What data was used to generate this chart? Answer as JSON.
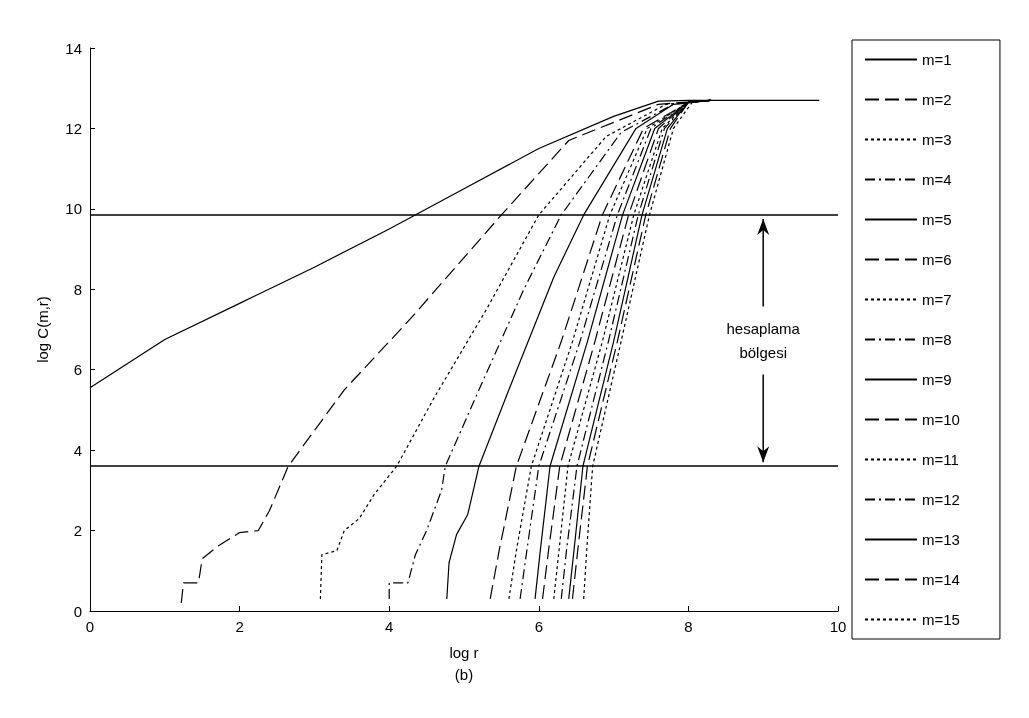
{
  "chart_data": {
    "type": "line",
    "xlabel": "log r",
    "ylabel": "log C(m,r)",
    "xlim": [
      0,
      10
    ],
    "ylim": [
      0,
      14
    ],
    "xticks": [
      0,
      2,
      4,
      6,
      8,
      10
    ],
    "yticks": [
      0,
      2,
      4,
      6,
      8,
      10,
      12,
      14
    ],
    "grid": false,
    "legend": "right",
    "marker": "none",
    "annotations": [
      {
        "text": "hesaplama bölgesi",
        "x": 9,
        "y": 9.85
      },
      "(b)"
    ],
    "ref_lines": [
      {
        "axis": "y",
        "value": 9.85,
        "color": "#000000"
      },
      {
        "axis": "y",
        "value": 3.6,
        "color": "#000000"
      }
    ],
    "series": [
      {
        "name": "m=1",
        "color": "#000000",
        "line_style": "solid",
        "x": [
          0,
          1,
          2,
          3,
          4,
          5,
          6,
          7,
          7.6,
          8,
          9.75
        ],
        "values": [
          5.55,
          6.75,
          7.65,
          8.55,
          9.5,
          10.5,
          11.5,
          12.3,
          12.68,
          12.7,
          12.7
        ]
      },
      {
        "name": "m=2",
        "color": "#000000",
        "line_style": "dashed",
        "x": [
          1.22,
          1.25,
          1.45,
          1.5,
          1.7,
          2,
          2.25,
          2.4,
          2.65,
          3.4,
          4.3,
          5.5,
          6.4,
          7.6,
          8.3
        ],
        "values": [
          0.2,
          0.7,
          0.7,
          1.3,
          1.6,
          1.95,
          2,
          2.5,
          3.6,
          5.5,
          7.3,
          9.85,
          11.7,
          12.6,
          12.7
        ]
      },
      {
        "name": "m=3",
        "color": "#000000",
        "line_style": "dotted",
        "x": [
          3.08,
          3.1,
          3.3,
          3.4,
          3.6,
          3.8,
          4.1,
          4.6,
          5.3,
          6,
          6.9,
          7.7,
          8.3
        ],
        "values": [
          0.3,
          1.4,
          1.5,
          2,
          2.3,
          2.9,
          3.6,
          5.3,
          7.5,
          9.85,
          11.8,
          12.6,
          12.7
        ]
      },
      {
        "name": "m=4",
        "color": "#000000",
        "line_style": "dashdot",
        "x": [
          4,
          4,
          4.25,
          4.35,
          4.5,
          4.7,
          4.75,
          5.2,
          5.8,
          6.3,
          7.1,
          7.8,
          8.3
        ],
        "values": [
          0.3,
          0.7,
          0.7,
          1.4,
          2,
          3,
          3.6,
          5.5,
          8,
          9.85,
          11.9,
          12.6,
          12.7
        ]
      },
      {
        "name": "m=5",
        "color": "#000000",
        "line_style": "solid",
        "x": [
          4.77,
          4.8,
          4.9,
          5.05,
          5.2,
          5.6,
          6.2,
          6.6,
          7.3,
          7.8,
          8.3
        ],
        "values": [
          0.3,
          1.2,
          1.9,
          2.4,
          3.6,
          5.5,
          8.3,
          9.85,
          12,
          12.6,
          12.7
        ]
      },
      {
        "name": "m=6",
        "color": "#000000",
        "line_style": "dashed",
        "x": [
          5.35,
          5.47,
          5.7,
          6.3,
          6.85,
          7.4,
          8,
          8.3
        ],
        "values": [
          0.3,
          1.5,
          3.6,
          6.7,
          9.85,
          12,
          12.65,
          12.7
        ]
      },
      {
        "name": "m=7",
        "color": "#000000",
        "line_style": "dotted",
        "x": [
          5.6,
          5.7,
          5.9,
          6.45,
          6.95,
          7.45,
          8,
          8.3
        ],
        "values": [
          0.3,
          1.5,
          3.6,
          6.7,
          9.85,
          12,
          12.65,
          12.7
        ]
      },
      {
        "name": "m=8",
        "color": "#000000",
        "line_style": "dashdot",
        "x": [
          5.75,
          5.84,
          6,
          6.55,
          7.05,
          7.5,
          8,
          8.3
        ],
        "values": [
          0.3,
          1.5,
          3.6,
          6.7,
          9.85,
          12,
          12.65,
          12.7
        ]
      },
      {
        "name": "m=9",
        "color": "#000000",
        "line_style": "solid",
        "x": [
          5.95,
          6.02,
          6.15,
          6.65,
          7.12,
          7.55,
          8,
          8.3
        ],
        "values": [
          0.3,
          1.5,
          3.6,
          6.7,
          9.85,
          12,
          12.65,
          12.7
        ]
      },
      {
        "name": "m=10",
        "color": "#000000",
        "line_style": "dashed",
        "x": [
          6.05,
          6.13,
          6.28,
          6.75,
          7.2,
          7.6,
          8,
          8.3
        ],
        "values": [
          0.3,
          1.5,
          3.6,
          6.7,
          9.85,
          12,
          12.65,
          12.7
        ]
      },
      {
        "name": "m=11",
        "color": "#000000",
        "line_style": "dotted",
        "x": [
          6.2,
          6.27,
          6.39,
          6.85,
          7.27,
          7.65,
          8,
          8.3
        ],
        "values": [
          0.3,
          1.5,
          3.6,
          6.7,
          9.85,
          12,
          12.65,
          12.7
        ]
      },
      {
        "name": "m=12",
        "color": "#000000",
        "line_style": "dashdot",
        "x": [
          6.3,
          6.37,
          6.51,
          6.93,
          7.33,
          7.68,
          8,
          8.3
        ],
        "values": [
          0.3,
          1.5,
          3.6,
          6.7,
          9.85,
          12,
          12.65,
          12.7
        ]
      },
      {
        "name": "m=13",
        "color": "#000000",
        "line_style": "solid",
        "x": [
          6.4,
          6.47,
          6.59,
          7,
          7.38,
          7.72,
          8,
          8.3
        ],
        "values": [
          0.3,
          1.5,
          3.6,
          6.7,
          9.85,
          12,
          12.65,
          12.7
        ]
      },
      {
        "name": "m=14",
        "color": "#000000",
        "line_style": "dashed",
        "x": [
          6.45,
          6.52,
          6.65,
          7.05,
          7.43,
          7.76,
          8,
          8.3
        ],
        "values": [
          0.3,
          1.5,
          3.6,
          6.7,
          9.85,
          12,
          12.65,
          12.7
        ]
      },
      {
        "name": "m=15",
        "color": "#000000",
        "line_style": "dotted",
        "x": [
          6.6,
          6.64,
          6.72,
          7.1,
          7.48,
          7.8,
          8.05,
          8.3
        ],
        "values": [
          0.3,
          1.5,
          3.6,
          6.7,
          9.85,
          12,
          12.65,
          12.7
        ]
      }
    ]
  }
}
